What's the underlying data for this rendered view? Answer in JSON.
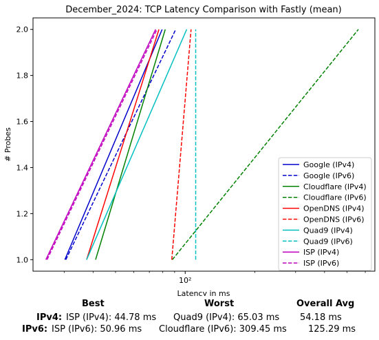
{
  "chart_data": {
    "type": "line",
    "title": "December_2024: TCP Latency Comparison with Fastly (mean)",
    "xlabel": "Latency in ms",
    "ylabel": "# Probes",
    "xscale": "log",
    "xlim": [
      22,
      660
    ],
    "ylim": [
      0.95,
      2.05
    ],
    "x_ticks": [
      100
    ],
    "x_tick_labels": [
      "10²"
    ],
    "y_ticks": [
      1.0,
      1.2,
      1.4,
      1.6,
      1.8,
      2.0
    ],
    "y_tick_labels": [
      "1.0",
      "1.2",
      "1.4",
      "1.6",
      "1.8",
      "2.0"
    ],
    "grid": false,
    "legend_position": "lower-right",
    "series": [
      {
        "name": "Google (IPv4)",
        "color": "#0000cc",
        "dash": "solid",
        "x": [
          30.2,
          79.5
        ],
        "y": [
          1.0,
          2.0
        ]
      },
      {
        "name": "Google (IPv6)",
        "color": "#0000cc",
        "dash": "dashed",
        "x": [
          30.5,
          91.0
        ],
        "y": [
          1.0,
          2.0
        ]
      },
      {
        "name": "Cloudflare (IPv4)",
        "color": "#008000",
        "dash": "solid",
        "x": [
          41.0,
          82.0
        ],
        "y": [
          1.0,
          2.0
        ]
      },
      {
        "name": "Cloudflare (IPv6)",
        "color": "#008000",
        "dash": "dashed",
        "x": [
          88.0,
          560.0
        ],
        "y": [
          1.0,
          2.0
        ]
      },
      {
        "name": "OpenDNS (IPv4)",
        "color": "#ff0000",
        "dash": "solid",
        "x": [
          37.5,
          77.0
        ],
        "y": [
          1.0,
          2.0
        ]
      },
      {
        "name": "OpenDNS (IPv6)",
        "color": "#ff0000",
        "dash": "dashed",
        "x": [
          87.5,
          106.0
        ],
        "y": [
          1.0,
          2.0
        ]
      },
      {
        "name": "Quad9 (IPv4)",
        "color": "#00bfbf",
        "dash": "solid",
        "x": [
          37.5,
          101.5
        ],
        "y": [
          1.0,
          2.0
        ]
      },
      {
        "name": "Quad9 (IPv6)",
        "color": "#00bfbf",
        "dash": "dashed",
        "x": [
          111.0,
          111.0
        ],
        "y": [
          1.0,
          2.0
        ]
      },
      {
        "name": "ISP (IPv4)",
        "color": "#bf00bf",
        "dash": "solid",
        "x": [
          25.0,
          74.5
        ],
        "y": [
          1.0,
          2.0
        ]
      },
      {
        "name": "ISP (IPv6)",
        "color": "#bf00bf",
        "dash": "dashed",
        "x": [
          25.3,
          75.5
        ],
        "y": [
          1.0,
          2.0
        ]
      }
    ]
  },
  "summary": {
    "headers": {
      "best": "Best",
      "worst": "Worst",
      "avg": "Overall Avg"
    },
    "rows": [
      {
        "label": "IPv4:",
        "best": "ISP (IPv4): 44.78 ms",
        "worst": "Quad9 (IPv4): 65.03 ms",
        "avg": "54.18 ms"
      },
      {
        "label": "IPv6:",
        "best": "ISP (IPv6): 50.96 ms",
        "worst": "Cloudflare (IPv6): 309.45 ms",
        "avg": "125.29 ms"
      }
    ]
  }
}
